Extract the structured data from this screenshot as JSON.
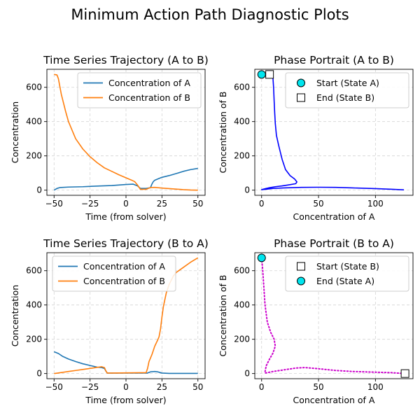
{
  "suptitle": "Minimum Action Path Diagnostic Plots",
  "colors": {
    "series_a": "#1f77b4",
    "series_b": "#ff7f0e",
    "path_ab": "#0000ff",
    "path_ba": "#cc00cc",
    "start_marker": "#00e5ee",
    "grid": "#d3d3d3"
  },
  "chart_data": [
    {
      "type": "line",
      "title": "Time Series Trajectory (A to B)",
      "xlabel": "Time (from solver)",
      "ylabel": "Concentration",
      "xlim": [
        -55,
        55
      ],
      "ylim": [
        -30,
        705
      ],
      "xticks": [
        -50,
        -25,
        0,
        25,
        50
      ],
      "yticks": [
        0,
        200,
        400,
        600
      ],
      "grid": true,
      "legend_position": "top-right",
      "series": [
        {
          "name": "Concentration of A",
          "color_key": "series_a",
          "x": [
            -50,
            -48,
            -46,
            -40,
            -30,
            -20,
            -10,
            0,
            5,
            8,
            10,
            14,
            17,
            18,
            19,
            20,
            22,
            25,
            30,
            35,
            40,
            45,
            50
          ],
          "y": [
            0,
            10,
            15,
            18,
            20,
            24,
            27,
            33,
            35,
            25,
            10,
            10,
            14,
            35,
            50,
            58,
            65,
            75,
            85,
            97,
            110,
            120,
            127
          ]
        },
        {
          "name": "Concentration of B",
          "color_key": "series_b",
          "x": [
            -50,
            -48,
            -47,
            -45,
            -42,
            -40,
            -37,
            -35,
            -30,
            -25,
            -20,
            -15,
            -10,
            -5,
            0,
            4,
            6,
            8,
            10,
            14,
            17,
            20,
            25,
            30,
            35,
            40,
            45,
            50
          ],
          "y": [
            675,
            672,
            650,
            560,
            460,
            400,
            340,
            300,
            240,
            195,
            160,
            130,
            110,
            90,
            72,
            58,
            50,
            30,
            5,
            5,
            15,
            16,
            12,
            9,
            6,
            3,
            1,
            0
          ]
        }
      ]
    },
    {
      "type": "line",
      "title": "Phase Portrait (A to B)",
      "xlabel": "Concentration of A",
      "ylabel": "Concentration of B",
      "xlim": [
        -6,
        133
      ],
      "ylim": [
        -30,
        705
      ],
      "xticks": [
        0,
        50,
        100
      ],
      "yticks": [
        0,
        200,
        400,
        600
      ],
      "grid": true,
      "legend_position": "top-right",
      "series": [
        {
          "color_key": "path_ab",
          "style": "solid",
          "x": [
            0,
            0.5,
            1,
            2,
            4,
            6,
            8,
            10,
            10.5,
            11,
            11.5,
            12,
            13,
            15,
            18,
            21,
            25,
            29,
            31,
            30,
            25,
            18,
            12,
            6,
            3,
            0,
            0,
            3,
            10,
            20,
            35,
            50,
            65,
            80,
            100,
            115,
            125
          ],
          "y": [
            675,
            675,
            675,
            675,
            675,
            675,
            670,
            650,
            600,
            520,
            450,
            390,
            320,
            260,
            180,
            120,
            85,
            65,
            48,
            38,
            32,
            25,
            20,
            13,
            8,
            3,
            3,
            5,
            10,
            13,
            16,
            17,
            16,
            13,
            9,
            5,
            2
          ]
        }
      ],
      "markers": [
        {
          "name": "Start (State A)",
          "shape": "circle",
          "color_key": "start_marker",
          "x": 0,
          "y": 675
        },
        {
          "name": "End (State B)",
          "shape": "square",
          "color_key": "none",
          "x": 7,
          "y": 675
        }
      ]
    },
    {
      "type": "line",
      "title": "Time Series Trajectory (B to A)",
      "xlabel": "Time (from solver)",
      "ylabel": "Concentration",
      "xlim": [
        -55,
        55
      ],
      "ylim": [
        -30,
        705
      ],
      "xticks": [
        -50,
        -25,
        0,
        25,
        50
      ],
      "yticks": [
        0,
        200,
        400,
        600
      ],
      "grid": true,
      "legend_position": "top-left",
      "series": [
        {
          "name": "Concentration of A",
          "color_key": "series_a",
          "x": [
            -50,
            -47,
            -44,
            -40,
            -35,
            -30,
            -25,
            -20,
            -17,
            -15,
            -14,
            -13,
            -10,
            0,
            10,
            15,
            17,
            20,
            22,
            25,
            30,
            40,
            50
          ],
          "y": [
            127,
            117,
            100,
            85,
            70,
            57,
            47,
            37,
            35,
            30,
            15,
            3,
            3,
            3,
            3,
            3,
            10,
            12,
            10,
            3,
            1,
            1,
            1
          ]
        },
        {
          "name": "Concentration of B",
          "color_key": "series_b",
          "x": [
            -50,
            -45,
            -40,
            -35,
            -30,
            -25,
            -20,
            -17,
            -15,
            -14,
            -13,
            -10,
            0,
            10,
            14,
            15,
            16,
            18,
            20,
            22,
            23,
            24,
            25,
            26,
            27,
            28,
            30,
            33,
            35,
            40,
            45,
            50
          ],
          "y": [
            0,
            6,
            12,
            18,
            24,
            30,
            36,
            40,
            35,
            15,
            3,
            3,
            4,
            5,
            5,
            30,
            70,
            110,
            160,
            195,
            215,
            260,
            330,
            390,
            430,
            470,
            520,
            570,
            590,
            620,
            650,
            675
          ]
        }
      ]
    },
    {
      "type": "line",
      "title": "Phase Portrait (B to A)",
      "xlabel": "Concentration of A",
      "ylabel": "Concentration of B",
      "xlim": [
        -6,
        133
      ],
      "ylim": [
        -30,
        705
      ],
      "xticks": [
        0,
        50,
        100
      ],
      "yticks": [
        0,
        200,
        400,
        600
      ],
      "grid": true,
      "legend_position": "top-right",
      "series": [
        {
          "color_key": "path_ba",
          "style": "dotted",
          "x": [
            0,
            1,
            2,
            3,
            5,
            8,
            11,
            12,
            10,
            7,
            4,
            3,
            3,
            5,
            10,
            20,
            30,
            38,
            50,
            65,
            80,
            100,
            115,
            125
          ],
          "y": [
            675,
            600,
            500,
            400,
            300,
            240,
            200,
            160,
            120,
            85,
            45,
            10,
            3,
            5,
            12,
            22,
            32,
            35,
            28,
            18,
            12,
            8,
            5,
            0
          ]
        }
      ],
      "markers": [
        {
          "name": "Start (State B)",
          "shape": "square",
          "color_key": "none",
          "x": 126,
          "y": 0
        },
        {
          "name": "End (State A)",
          "shape": "circle",
          "color_key": "start_marker",
          "x": 0,
          "y": 675
        }
      ]
    }
  ]
}
